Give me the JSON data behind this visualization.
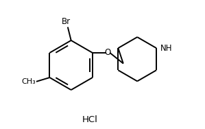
{
  "hcl_label": "HCl",
  "br_label": "Br",
  "o_label": "O",
  "nh_label": "NH",
  "background": "#ffffff",
  "line_color": "#000000",
  "text_color": "#000000",
  "line_width": 1.4,
  "font_size": 8.5
}
